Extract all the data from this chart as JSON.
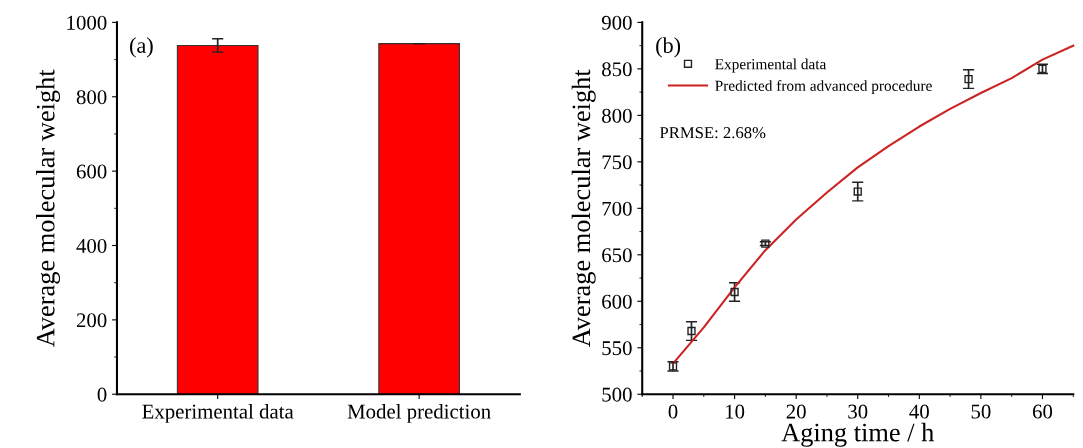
{
  "chart_data": [
    {
      "type": "bar",
      "categories": [
        "Experimental data",
        "Model prediction"
      ],
      "values": [
        938,
        943
      ],
      "errors": [
        18,
        null
      ],
      "color": "#ff0000",
      "ylabel": "Average molecular weight",
      "ylim": [
        0,
        1000
      ],
      "yticks": [
        0,
        200,
        400,
        600,
        800,
        1000
      ],
      "annotations": [
        "(a)"
      ]
    },
    {
      "type": "scatter",
      "xlabel": "Aging time / h",
      "ylabel": "Average molecular weight",
      "xlim": [
        -5,
        65
      ],
      "xticks": [
        0,
        10,
        20,
        30,
        40,
        50,
        60
      ],
      "ylim": [
        500,
        900
      ],
      "yticks": [
        500,
        550,
        600,
        650,
        700,
        750,
        800,
        850,
        900
      ],
      "legend": "top left",
      "annotations": [
        "(b)",
        "PRMSE: 2.68%"
      ],
      "series": [
        {
          "name": "Experimental data",
          "type": "scatter",
          "marker": "square",
          "color": "#222222",
          "x": [
            0,
            3,
            10,
            15,
            30,
            48,
            60
          ],
          "values": [
            530,
            568,
            610,
            662,
            718,
            839,
            850
          ],
          "errors": [
            5,
            10,
            10,
            2,
            10,
            10,
            5
          ]
        },
        {
          "name": "Predicted from advanced procedure",
          "type": "line",
          "color": "#cc2222",
          "x": [
            0,
            5,
            10,
            15,
            20,
            25,
            30,
            35,
            40,
            45,
            50,
            55,
            60,
            65
          ],
          "values": [
            533,
            572,
            615,
            655,
            688,
            717,
            744,
            767,
            788,
            807,
            824,
            840,
            860,
            875
          ]
        }
      ]
    }
  ]
}
